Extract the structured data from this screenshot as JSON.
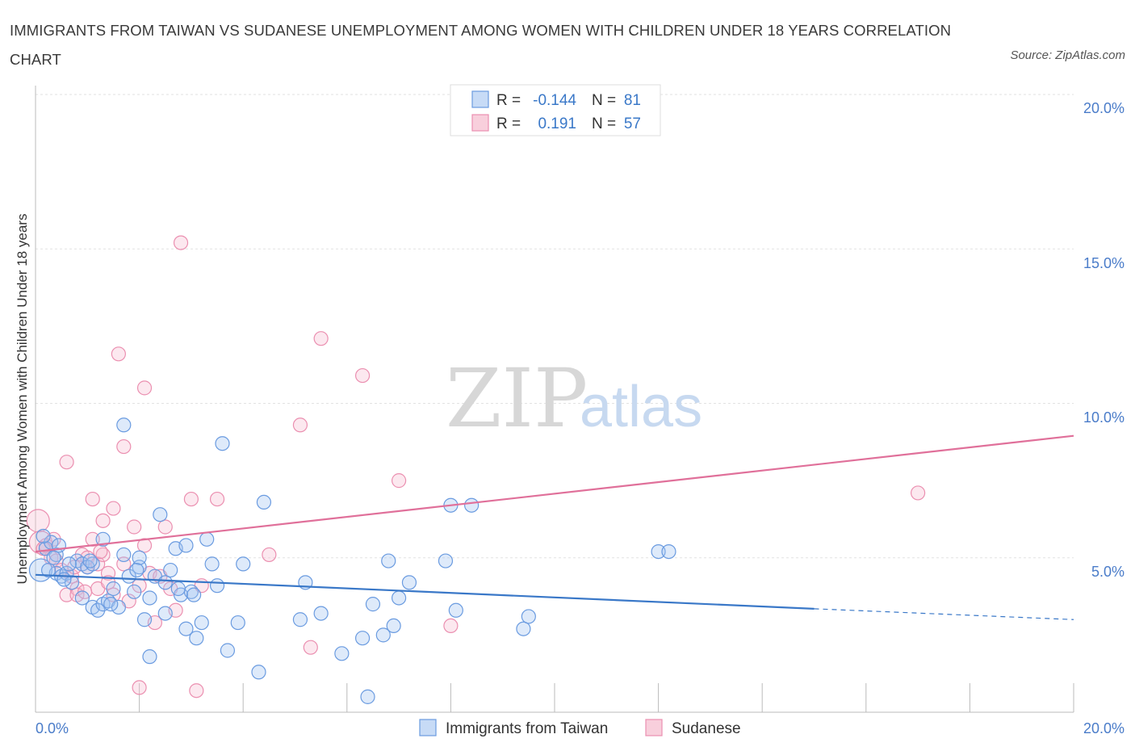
{
  "title": "IMMIGRANTS FROM TAIWAN VS SUDANESE UNEMPLOYMENT AMONG WOMEN WITH CHILDREN UNDER 18 YEARS CORRELATION CHART",
  "source": "Source: ZipAtlas.com",
  "watermark": {
    "zip": "ZIP",
    "atlas": "atlas"
  },
  "colors": {
    "taiwan": "#6a9be0",
    "taiwan_line": "#3a78c8",
    "sudanese": "#eb8fb0",
    "sudanese_line": "#e0709a",
    "tick": "#4a7cc9",
    "grid": "#e2e2e2"
  },
  "legend": {
    "rows": [
      {
        "r_label": "R =",
        "r_value": "-0.144",
        "n_label": "N =",
        "n_value": "81"
      },
      {
        "r_label": "R =",
        "r_value": "0.191",
        "n_label": "N =",
        "n_value": "57"
      }
    ]
  },
  "bottom_legend": [
    "Immigrants from Taiwan",
    "Sudanese"
  ],
  "chart_data": {
    "type": "scatter",
    "title": "IMMIGRANTS FROM TAIWAN VS SUDANESE UNEMPLOYMENT AMONG WOMEN WITH CHILDREN UNDER 18 YEARS CORRELATION CHART",
    "xlabel": "",
    "ylabel": "Unemployment Among Women with Children Under 18 years",
    "xlim": [
      0,
      20
    ],
    "ylim": [
      0,
      20
    ],
    "x_tick_labels": [
      "0.0%",
      "20.0%"
    ],
    "y_tick_labels": [
      "5.0%",
      "10.0%",
      "15.0%",
      "20.0%"
    ],
    "y_ticks": [
      5,
      10,
      15,
      20
    ],
    "grid": true,
    "legend_position": "top-center",
    "series": [
      {
        "name": "Immigrants from Taiwan",
        "R": -0.144,
        "N": 81,
        "trend": {
          "x_start": 0,
          "y_start": 4.45,
          "x_solid_end": 15,
          "y_solid_end": 3.35,
          "x_end": 20,
          "y_end": 3.0
        },
        "points": [
          [
            0.1,
            4.6
          ],
          [
            0.2,
            5.3
          ],
          [
            0.3,
            5.5
          ],
          [
            0.4,
            5.1
          ],
          [
            0.4,
            4.5
          ],
          [
            0.5,
            4.4
          ],
          [
            0.6,
            4.5
          ],
          [
            0.7,
            4.2
          ],
          [
            0.8,
            4.9
          ],
          [
            0.9,
            3.7
          ],
          [
            0.9,
            4.8
          ],
          [
            1.0,
            4.7
          ],
          [
            1.1,
            4.8
          ],
          [
            1.1,
            3.4
          ],
          [
            1.2,
            3.3
          ],
          [
            1.3,
            5.6
          ],
          [
            1.3,
            3.5
          ],
          [
            1.4,
            3.6
          ],
          [
            1.5,
            4.0
          ],
          [
            1.6,
            3.4
          ],
          [
            1.7,
            5.1
          ],
          [
            1.7,
            9.3
          ],
          [
            1.8,
            4.4
          ],
          [
            1.9,
            3.9
          ],
          [
            2.0,
            4.7
          ],
          [
            2.0,
            5.0
          ],
          [
            2.1,
            3.0
          ],
          [
            2.2,
            3.7
          ],
          [
            2.2,
            1.8
          ],
          [
            2.3,
            4.4
          ],
          [
            2.4,
            6.4
          ],
          [
            2.5,
            3.2
          ],
          [
            2.5,
            4.2
          ],
          [
            2.6,
            4.6
          ],
          [
            2.7,
            5.3
          ],
          [
            2.8,
            3.8
          ],
          [
            2.9,
            5.4
          ],
          [
            2.9,
            2.7
          ],
          [
            3.0,
            3.9
          ],
          [
            3.1,
            2.4
          ],
          [
            3.2,
            2.9
          ],
          [
            3.3,
            5.6
          ],
          [
            3.4,
            4.8
          ],
          [
            3.5,
            4.1
          ],
          [
            3.6,
            8.7
          ],
          [
            3.7,
            2.0
          ],
          [
            3.9,
            2.9
          ],
          [
            4.0,
            4.8
          ],
          [
            4.3,
            1.3
          ],
          [
            4.4,
            6.8
          ],
          [
            5.1,
            3.0
          ],
          [
            5.2,
            4.2
          ],
          [
            5.5,
            3.2
          ],
          [
            5.9,
            1.9
          ],
          [
            6.3,
            2.4
          ],
          [
            6.4,
            0.5
          ],
          [
            6.5,
            3.5
          ],
          [
            6.7,
            2.5
          ],
          [
            6.8,
            4.9
          ],
          [
            6.9,
            2.8
          ],
          [
            7.0,
            3.7
          ],
          [
            7.2,
            4.2
          ],
          [
            7.9,
            4.9
          ],
          [
            8.0,
            6.7
          ],
          [
            8.1,
            3.3
          ],
          [
            8.4,
            6.7
          ],
          [
            9.4,
            2.7
          ],
          [
            9.5,
            3.1
          ],
          [
            12.0,
            5.2
          ],
          [
            12.2,
            5.2
          ],
          [
            0.15,
            5.7
          ],
          [
            0.25,
            4.6
          ],
          [
            0.35,
            5.0
          ],
          [
            0.55,
            4.3
          ],
          [
            0.65,
            4.8
          ],
          [
            1.05,
            4.9
          ],
          [
            1.45,
            3.5
          ],
          [
            1.95,
            4.6
          ],
          [
            2.75,
            4.0
          ],
          [
            3.05,
            3.8
          ],
          [
            0.45,
            5.4
          ]
        ]
      },
      {
        "name": "Sudanese",
        "R": 0.191,
        "N": 57,
        "trend": {
          "x_start": 0,
          "y_start": 5.2,
          "x_end": 20,
          "y_end": 8.95
        },
        "points": [
          [
            0.05,
            6.2
          ],
          [
            0.1,
            5.5
          ],
          [
            0.2,
            5.4
          ],
          [
            0.3,
            5.0
          ],
          [
            0.4,
            4.9
          ],
          [
            0.5,
            4.6
          ],
          [
            0.6,
            3.8
          ],
          [
            0.6,
            8.1
          ],
          [
            0.7,
            4.4
          ],
          [
            0.8,
            4.0
          ],
          [
            0.8,
            3.8
          ],
          [
            0.9,
            5.1
          ],
          [
            1.0,
            4.7
          ],
          [
            1.0,
            5.0
          ],
          [
            1.1,
            5.6
          ],
          [
            1.1,
            6.9
          ],
          [
            1.2,
            4.8
          ],
          [
            1.2,
            4.0
          ],
          [
            1.3,
            5.1
          ],
          [
            1.3,
            6.2
          ],
          [
            1.4,
            4.5
          ],
          [
            1.4,
            4.2
          ],
          [
            1.5,
            3.8
          ],
          [
            1.5,
            6.6
          ],
          [
            1.6,
            11.6
          ],
          [
            1.7,
            4.8
          ],
          [
            1.7,
            8.6
          ],
          [
            1.8,
            3.6
          ],
          [
            1.9,
            6.0
          ],
          [
            2.0,
            4.1
          ],
          [
            2.1,
            10.5
          ],
          [
            2.1,
            5.4
          ],
          [
            2.2,
            4.5
          ],
          [
            2.3,
            2.9
          ],
          [
            2.5,
            6.0
          ],
          [
            2.6,
            4.0
          ],
          [
            2.7,
            3.3
          ],
          [
            2.8,
            15.2
          ],
          [
            3.0,
            6.9
          ],
          [
            3.1,
            0.7
          ],
          [
            3.2,
            4.1
          ],
          [
            3.5,
            6.9
          ],
          [
            4.5,
            5.1
          ],
          [
            5.1,
            9.3
          ],
          [
            5.3,
            2.1
          ],
          [
            5.5,
            12.1
          ],
          [
            6.3,
            10.9
          ],
          [
            7.0,
            7.5
          ],
          [
            8.0,
            2.8
          ],
          [
            2.0,
            0.8
          ],
          [
            17.0,
            7.1
          ],
          [
            0.35,
            5.6
          ],
          [
            0.75,
            4.7
          ],
          [
            0.95,
            3.9
          ],
          [
            1.25,
            5.2
          ],
          [
            2.4,
            4.4
          ],
          [
            0.15,
            5.3
          ]
        ]
      }
    ]
  }
}
